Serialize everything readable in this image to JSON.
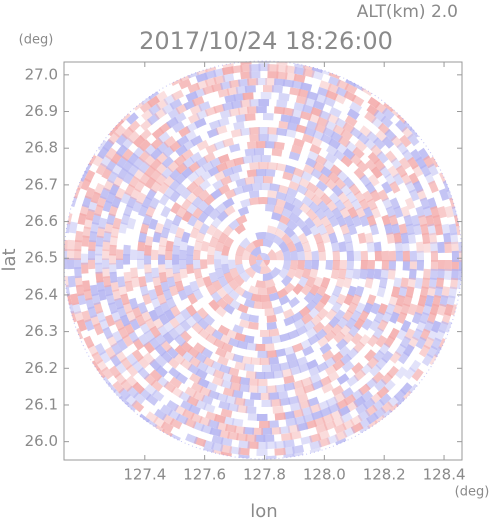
{
  "chart_data": {
    "type": "radar-ppi",
    "title": "2017/10/24 18:26:00",
    "altitude_label": "ALT(km) 2.0",
    "x_label": "lon",
    "y_label": "lat",
    "x_unit": "(deg)",
    "y_unit": "(deg)",
    "xlim": [
      127.13,
      128.46
    ],
    "ylim": [
      25.95,
      27.035
    ],
    "xticks": [
      127.4,
      127.6,
      127.8,
      {
        "value": 128.0,
        "label": "128.0"
      },
      128.2,
      128.4
    ],
    "yticks": [
      {
        "value": 26.0,
        "label": "26.0"
      },
      26.1,
      26.2,
      26.3,
      26.4,
      26.5,
      26.6,
      26.7,
      26.8,
      26.9,
      {
        "value": 27.0,
        "label": "27.0"
      }
    ]
  }
}
